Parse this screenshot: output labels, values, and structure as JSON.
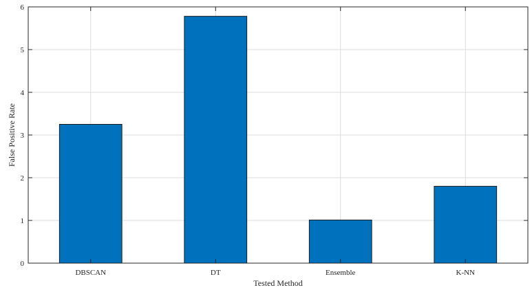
{
  "chart_data": {
    "type": "bar",
    "categories": [
      "DBSCAN",
      "DT",
      "Ensemble",
      "K-NN"
    ],
    "values": [
      3.25,
      5.78,
      1.01,
      1.8
    ],
    "title": "",
    "xlabel": "Tested Method",
    "ylabel": "False Positive Rate",
    "ylim": [
      0,
      6
    ],
    "yticks": [
      0,
      1,
      2,
      3,
      4,
      5,
      6
    ],
    "grid": true,
    "bar_color": "#0072BD",
    "bar_edge_color": "#1a1a1a"
  }
}
